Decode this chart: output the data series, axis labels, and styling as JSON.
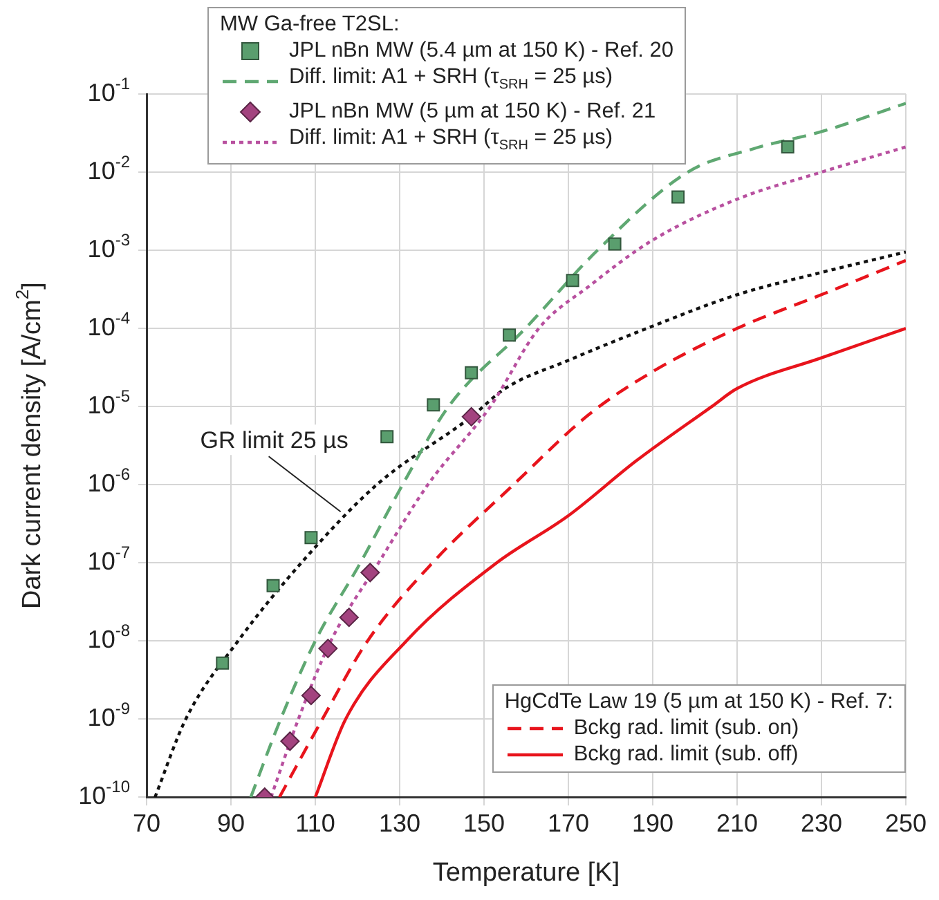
{
  "chart_data": {
    "type": "scatter",
    "xlabel": "Temperature [K]",
    "ylabel": "Dark current density [A/cm$^{2}$]",
    "log": "y",
    "grid": true,
    "legend": "top left",
    "legend_title": "MW Ga-free T2SL:",
    "xlim": [
      70,
      250
    ],
    "xticks": [
      70,
      90,
      110,
      130,
      150,
      170,
      190,
      210,
      230,
      250
    ],
    "ylim": [
      1e-10,
      0.1
    ],
    "yticks": [
      {
        "value": 1e-10,
        "label": "10$^{-10}$"
      },
      {
        "value": 1e-09,
        "label": "10$^{-9}$"
      },
      {
        "value": 1e-08,
        "label": "10$^{-8}$"
      },
      {
        "value": 1e-07,
        "label": "10$^{-7}$"
      },
      {
        "value": 1e-06,
        "label": "10$^{-6}$"
      },
      {
        "value": 1e-05,
        "label": "10$^{-5}$"
      },
      {
        "value": 0.0001,
        "label": "10$^{-4}$"
      },
      {
        "value": 0.001,
        "label": "10$^{-3}$"
      },
      {
        "value": 0.01,
        "label": "10$^{-2}$"
      },
      {
        "value": 0.1,
        "label": "10$^{-1}$"
      }
    ],
    "series": [
      {
        "name": "JPL nBn MW (5.4 µm at 150 K) - Ref. 20",
        "type": "scatter",
        "marker": "square",
        "color": "#5a9e6e",
        "x": [
          88,
          100,
          109,
          127,
          138,
          147,
          156,
          171,
          181,
          196,
          222
        ],
        "values": [
          5.2e-09,
          5.1e-08,
          2.1e-07,
          4.1e-06,
          1.05e-05,
          2.7e-05,
          8.2e-05,
          0.00041,
          0.0012,
          0.0048,
          0.021
        ]
      },
      {
        "name": "Diff. limit: A1 + SRH (τ$_{SRH}$ = 25 µs)",
        "type": "line",
        "line_style": "dashed",
        "marker": "none",
        "color": "#5fa872",
        "x": [
          94.7,
          101.8,
          110,
          120.7,
          130.7,
          141.6,
          159.8,
          176.9,
          198.3,
          214,
          230,
          250
        ],
        "values": [
          1e-10,
          1e-09,
          1e-08,
          1e-07,
          1e-06,
          1e-05,
          0.0001,
          0.001,
          0.01,
          0.02,
          0.033,
          0.076
        ]
      },
      {
        "name": "JPL nBn MW (5 µm at 150 K) - Ref. 21",
        "type": "scatter",
        "marker": "diamond",
        "color": "#a3437f",
        "x": [
          98,
          104,
          109,
          113,
          118,
          123,
          147
        ],
        "values": [
          1e-10,
          5.2e-10,
          2e-09,
          8e-09,
          2e-08,
          7.5e-08,
          7.4e-06
        ]
      },
      {
        "name": "Diff. limit: A1 + SRH (τ$_{SRH}$ = 25 µs)",
        "type": "line",
        "line_style": "dotted",
        "marker": "none",
        "color": "#b8509f",
        "x": [
          99.5,
          106,
          113.7,
          125,
          136.7,
          151.5,
          163,
          175,
          190,
          210,
          230,
          250
        ],
        "values": [
          1e-10,
          1e-09,
          1e-08,
          1e-07,
          1e-06,
          1e-05,
          0.0001,
          0.00035,
          0.00135,
          0.0045,
          0.01,
          0.021
        ]
      },
      {
        "type": "line",
        "line_style": "dotted",
        "marker": "none",
        "color": "#111111",
        "x": [
          72,
          79.3,
          91.7,
          106.7,
          124.6,
          147,
          155,
          170,
          190,
          210,
          230,
          250
        ],
        "values": [
          1e-10,
          1e-09,
          1e-08,
          1e-07,
          1e-06,
          7.4e-06,
          1.7e-05,
          3.9e-05,
          0.000107,
          0.00027,
          0.00052,
          0.00095
        ]
      },
      {
        "name": "Bckg rad. limit (sub. on)",
        "type": "line",
        "line_style": "dashed",
        "marker": "none",
        "color": "#e8141c",
        "x": [
          101.5,
          111.7,
          122.4,
          137.8,
          157,
          175,
          190,
          210,
          230,
          250
        ],
        "values": [
          1e-10,
          1e-09,
          1e-08,
          1e-07,
          1e-06,
          8e-06,
          2.8e-05,
          0.0001,
          0.00027,
          0.00074
        ]
      },
      {
        "name": "Bckg rad. limit (sub. off)",
        "type": "line",
        "line_style": "solid",
        "marker": "none",
        "color": "#e8141c",
        "x": [
          110,
          117.2,
          131.6,
          153,
          170,
          186,
          204,
          210,
          230,
          250
        ],
        "values": [
          1e-10,
          1e-09,
          1e-08,
          1e-07,
          4e-07,
          2e-06,
          1e-05,
          1.7e-05,
          4.2e-05,
          0.0001
        ]
      }
    ],
    "annotations": [
      {
        "text": "GR limit 25 µs",
        "x": 116,
        "y": 4.5e-07
      },
      "HgCdTe Law 19 (5 µm at 150 K) - Ref. 7:"
    ]
  }
}
